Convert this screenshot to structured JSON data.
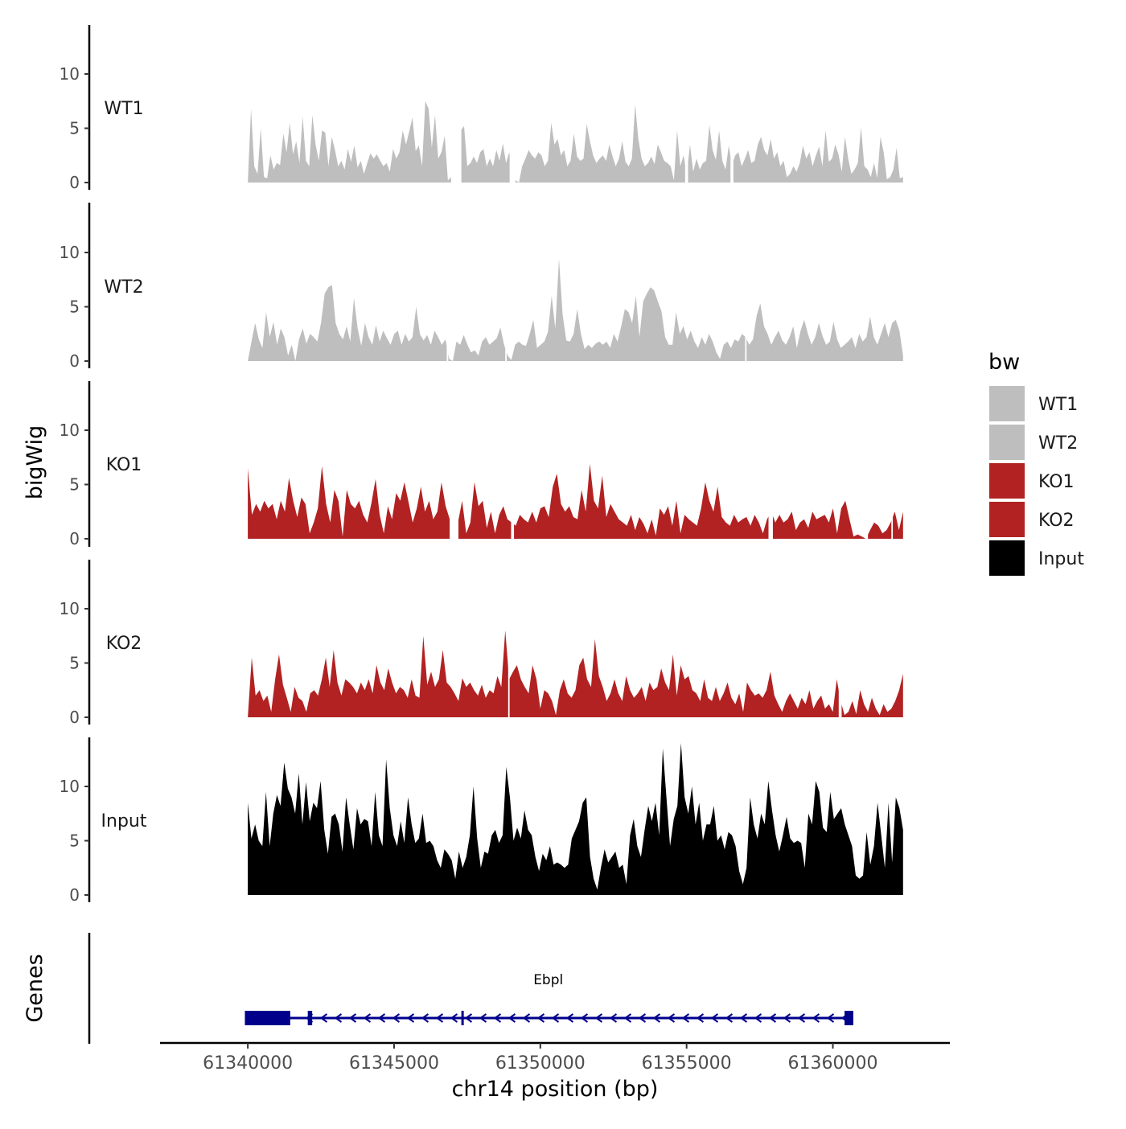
{
  "chart_data": {
    "type": "area",
    "title": "",
    "ylabel_tracks": "bigWig",
    "ylabel_genes": "Genes",
    "xlabel": "chr14 position (bp)",
    "xlim": [
      61337000,
      61364000
    ],
    "ylim": [
      0,
      14
    ],
    "x_ticks": [
      61340000,
      61345000,
      61350000,
      61355000,
      61360000
    ],
    "x_tick_labels": [
      "61340000",
      "61345000",
      "61350000",
      "61355000",
      "61360000"
    ],
    "y_ticks": [
      0,
      5,
      10
    ],
    "y_tick_labels": [
      "0",
      "5",
      "10"
    ],
    "legend": {
      "title": "bw",
      "position": "right",
      "items": [
        {
          "label": "WT1",
          "color": "#bebebe"
        },
        {
          "label": "WT2",
          "color": "#bebebe"
        },
        {
          "label": "KO1",
          "color": "#b22222"
        },
        {
          "label": "KO2",
          "color": "#b22222"
        },
        {
          "label": "Input",
          "color": "#000000"
        }
      ]
    },
    "series": [
      {
        "name": "WT1",
        "color": "#bebebe",
        "x_start": 61340000,
        "x_end": 61362400,
        "gaps": [
          [
            61346950,
            61347300
          ],
          [
            61348950,
            61349150
          ],
          [
            61354950,
            61355050
          ],
          [
            61356500,
            61356600
          ]
        ],
        "values": [
          0,
          6.8,
          1.5,
          0.8,
          5,
          0.5,
          0.4,
          2.5,
          1.2,
          1.8,
          1.6,
          4.5,
          2.8,
          5.5,
          2.6,
          3.8,
          1.8,
          6.1,
          2,
          1.5,
          6.2,
          3.5,
          2,
          4.8,
          4.6,
          1.5,
          4.2,
          3,
          1.5,
          2,
          1.2,
          3.1,
          1.9,
          3.4,
          1.4,
          2,
          0.8,
          1.8,
          2.7,
          2.2,
          2.6,
          2,
          1.5,
          1.8,
          1,
          3.1,
          2.2,
          2.8,
          4.8,
          3.5,
          4.7,
          6,
          2.9,
          3.4,
          1.5,
          7.5,
          6.8,
          3.2,
          6.2,
          2.2,
          2.8,
          4.3,
          0.2,
          0.5,
          0,
          2.2,
          4.8,
          5.2,
          1.5,
          1.8,
          2.4,
          1.8,
          2.8,
          3.1,
          1.5,
          2.2,
          1.5,
          3,
          2,
          3.6,
          1.8,
          2.8,
          0.5,
          0.2,
          0,
          1.5,
          2.2,
          3,
          2.5,
          2.2,
          2.8,
          2.5,
          1.5,
          2,
          5.5,
          3.5,
          4,
          2.5,
          3,
          1.5,
          2,
          4.5,
          2.4,
          2,
          2.2,
          5.4,
          3.8,
          2.5,
          1.8,
          2.2,
          2.5,
          2,
          3.5,
          2.4,
          1.5,
          2.2,
          3.8,
          1.9,
          1.5,
          2.2,
          7.2,
          4,
          2.2,
          1.5,
          1.8,
          2.4,
          1.7,
          3.5,
          2.8,
          2,
          1.8,
          1.5,
          0.2,
          4.8,
          1.5,
          2.5,
          0.8,
          3.5,
          1,
          2.2,
          1.2,
          1.8,
          2,
          5.3,
          3,
          2.1,
          4.8,
          2,
          1.2,
          3.4,
          1.6,
          2.5,
          2.8,
          1.5,
          2.2,
          3,
          1.8,
          2,
          3.5,
          4.2,
          3,
          2.5,
          4,
          2.2,
          2.8,
          1.5,
          2,
          0.5,
          0.8,
          1.5,
          1,
          1.8,
          3.4,
          2.2,
          2.8,
          1.5,
          2.5,
          3.3,
          1.5,
          4.8,
          1.9,
          2.2,
          3.5,
          2.6,
          1,
          4.2,
          2.2,
          0.8,
          1.2,
          1.8,
          5.1,
          1.5,
          1.2,
          0.5,
          1.8,
          0.4,
          4.2,
          2.8,
          0.3,
          0.5,
          1.2,
          3.2,
          0.4,
          0.5
        ],
        "label": "WT1"
      },
      {
        "name": "WT2",
        "color": "#bebebe",
        "x_start": 61340000,
        "x_end": 61362400,
        "gaps": [
          [
            61346800,
            61346850
          ],
          [
            61348800,
            61348850
          ],
          [
            61357000,
            61357050
          ]
        ],
        "values": [
          0,
          1.8,
          3.5,
          2,
          1.2,
          4.5,
          2.2,
          3.6,
          1.5,
          3,
          2.2,
          0.5,
          1.5,
          0,
          2,
          3,
          1.6,
          2.5,
          2.2,
          1.8,
          3.5,
          6.2,
          6.8,
          7,
          3.5,
          2.5,
          2,
          3.2,
          1.8,
          5.8,
          3,
          1.4,
          3.5,
          2.2,
          1.5,
          3.3,
          1.8,
          2.8,
          2.1,
          1.5,
          2.5,
          2.8,
          1.5,
          2.5,
          1.8,
          2.2,
          5,
          2.5,
          1.9,
          2.4,
          1.5,
          2.8,
          2.2,
          1.5,
          2,
          0.2,
          0,
          1.8,
          1.5,
          2.4,
          1.5,
          0.8,
          1,
          0.5,
          1.8,
          2.2,
          1.5,
          1.8,
          2.1,
          3.1,
          1.5,
          0.5,
          0.1,
          1.5,
          1.8,
          1.5,
          1.4,
          2.5,
          3.8,
          1.2,
          1.5,
          1.8,
          2.7,
          6,
          3,
          9.4,
          4.3,
          1.9,
          1.8,
          2.5,
          4.8,
          2.5,
          1.1,
          1.5,
          1.2,
          1.6,
          1.8,
          1.5,
          1.8,
          1.2,
          2.5,
          1.8,
          3.2,
          4.8,
          4.5,
          3.5,
          6,
          2.2,
          5.5,
          6.2,
          6.8,
          6.5,
          5.5,
          4.6,
          2.2,
          1.5,
          1.5,
          4.5,
          2.5,
          3.2,
          2,
          2.8,
          1.8,
          1.2,
          2.2,
          1.5,
          2.5,
          1.8,
          0.8,
          0.2,
          1.5,
          1.8,
          1.2,
          2,
          1.8,
          2.5,
          2.2,
          1.5,
          2,
          4.2,
          5.3,
          3.2,
          2.5,
          1.5,
          2.2,
          2.8,
          1.9,
          1.5,
          2.2,
          3.2,
          1.2,
          2.8,
          3.8,
          2.5,
          1.5,
          2.2,
          3.5,
          2.3,
          1.5,
          1.8,
          3.6,
          2,
          1.2,
          1.5,
          1.8,
          2.2,
          1.2,
          2.5,
          1.8,
          2.2,
          4.1,
          2.2,
          1.5,
          2.5,
          3.5,
          2.2,
          3.5,
          3.8,
          2.8,
          0.5
        ]
      },
      {
        "name": "KO1",
        "color": "#b22222",
        "x_start": 61340000,
        "x_end": 61362400,
        "gaps": [
          [
            61346900,
            61347200
          ],
          [
            61349000,
            61349100
          ],
          [
            61357800,
            61357950
          ],
          [
            61361100,
            61361200
          ],
          [
            61362000,
            61362050
          ]
        ],
        "values": [
          6.5,
          2.2,
          3.2,
          2.5,
          3.5,
          2.8,
          3.2,
          1.8,
          3.5,
          2.5,
          5.6,
          3.5,
          2,
          3.8,
          3.2,
          0.5,
          1.5,
          2.8,
          6.7,
          3.2,
          1.5,
          4.5,
          3.5,
          0.2,
          4.5,
          3.2,
          2.8,
          3.5,
          2.2,
          1.5,
          3.3,
          5.5,
          2.2,
          0.5,
          3,
          1.8,
          4.2,
          3.5,
          5.2,
          3.4,
          1.5,
          2.8,
          4.8,
          2.5,
          3.5,
          1.8,
          2.5,
          5.2,
          3,
          1.8,
          2,
          1.5,
          3.5,
          0.5,
          1.5,
          5.2,
          3,
          3.5,
          1,
          2.5,
          0.5,
          2.2,
          3,
          1.8,
          1.5,
          1.2,
          2.2,
          1.8,
          1.5,
          2.5,
          1.5,
          2.8,
          3,
          2,
          4.8,
          6,
          3.2,
          2.5,
          3,
          2,
          1.8,
          4.5,
          2.5,
          6.9,
          3.5,
          2.8,
          5.8,
          2,
          3.2,
          2.5,
          1.8,
          1.5,
          1.2,
          2.2,
          0.8,
          2,
          1.4,
          0.5,
          1.8,
          0.3,
          2.8,
          2.2,
          3,
          1.2,
          3.5,
          0.5,
          2.2,
          1.8,
          1.5,
          1.2,
          2.8,
          5.2,
          3.5,
          2.5,
          4.8,
          2,
          1.5,
          1.2,
          2.2,
          1.5,
          1.8,
          2,
          1.2,
          2.2,
          1.5,
          0.5,
          1.8,
          2.5,
          1.5,
          2.2,
          1.5,
          1.8,
          2.5,
          0.8,
          1.5,
          1.8,
          1,
          2.5,
          1.8,
          2,
          2.2,
          1.5,
          2.8,
          0.5,
          2.8,
          3.5,
          1.8,
          0.2,
          0.4,
          0.2,
          0,
          0.8,
          1.5,
          1.2,
          0.5,
          0.8,
          1.5,
          2.5,
          0.8,
          2.5
        ]
      },
      {
        "name": "KO2",
        "color": "#b22222",
        "x_start": 61340000,
        "x_end": 61362400,
        "gaps": [
          [
            61348900,
            61348950
          ],
          [
            61360200,
            61360300
          ]
        ],
        "values": [
          0,
          5.5,
          2,
          2.5,
          1.5,
          2,
          0.5,
          3.5,
          5.8,
          3,
          1.8,
          0.5,
          2.8,
          1.8,
          1.5,
          0.5,
          2.2,
          2.5,
          2,
          3.5,
          5.5,
          2.8,
          6.2,
          3.2,
          2,
          3.5,
          3.2,
          2.8,
          2.2,
          3.2,
          2.5,
          3.5,
          2.2,
          4.8,
          3.2,
          2.5,
          4.5,
          3.2,
          2.2,
          2.8,
          2.5,
          1.8,
          3.5,
          2,
          1.8,
          7.5,
          3,
          4.2,
          2.8,
          3.5,
          6.2,
          3.2,
          2.8,
          2.2,
          1.5,
          3.6,
          2.8,
          3.2,
          2.5,
          2,
          3,
          1.8,
          2.5,
          2.2,
          3.8,
          2.8,
          8,
          3.5,
          4.2,
          4.8,
          3.5,
          2.8,
          2.2,
          4.8,
          3.5,
          0.8,
          2.5,
          2.2,
          1.5,
          0.2,
          2.5,
          3.5,
          2.2,
          1.8,
          2.5,
          4.8,
          5.5,
          3.5,
          2.8,
          7.2,
          3.8,
          2.8,
          1.5,
          2.2,
          3.5,
          2.2,
          1.5,
          3.8,
          2.5,
          1.8,
          2.2,
          2.8,
          1.5,
          3.2,
          2.5,
          2.8,
          4.5,
          3.2,
          2.5,
          5.8,
          2,
          4.8,
          3.5,
          3.8,
          2.5,
          2.2,
          1.5,
          3.5,
          1.8,
          1.5,
          2.8,
          1.5,
          2.2,
          3.2,
          1.8,
          1.2,
          2.2,
          0.5,
          3.2,
          2.5,
          2,
          2.2,
          1.8,
          2.5,
          4.2,
          2,
          1.2,
          0.5,
          1.5,
          2.2,
          1.5,
          0.8,
          1.8,
          1.2,
          2.5,
          0.8,
          1.5,
          2,
          0.8,
          1.2,
          0.5,
          3.5,
          1.5,
          0.2,
          0.5,
          1.5,
          0.3,
          2.5,
          1.2,
          0.5,
          1.8,
          0.8,
          0.2,
          1.2,
          0.5,
          0.8,
          1.5,
          2.5,
          4
        ]
      },
      {
        "name": "Input",
        "color": "#000000",
        "x_start": 61340000,
        "x_end": 61362400,
        "gaps": [],
        "values": [
          8.5,
          5.2,
          6.5,
          5,
          4.5,
          9.5,
          4.5,
          7.5,
          9.2,
          8.2,
          12.2,
          9.8,
          9,
          7.5,
          11.2,
          6.5,
          10.4,
          6.8,
          8.5,
          8,
          10.5,
          6,
          3.8,
          7.2,
          7.5,
          6.5,
          4,
          9,
          6.5,
          4.2,
          8,
          6.5,
          7,
          6.8,
          4.5,
          9.5,
          5.5,
          4.5,
          12.5,
          8,
          5.5,
          4.5,
          6.8,
          4.8,
          9,
          6.5,
          4.8,
          5.2,
          7.5,
          4.8,
          5,
          4.5,
          3.2,
          2.5,
          4.2,
          3.8,
          3.2,
          1.5,
          4,
          2.5,
          3.5,
          5.5,
          10,
          5.2,
          2.5,
          4,
          3.8,
          5.5,
          6,
          4.8,
          5.5,
          11.8,
          9,
          5,
          6.2,
          5.2,
          7.8,
          6,
          5.5,
          3.5,
          2.2,
          3.8,
          3.2,
          4.5,
          2.8,
          3,
          2.8,
          2.5,
          2.8,
          5.2,
          6,
          6.8,
          8.5,
          9,
          3.5,
          1.5,
          0.5,
          2.5,
          4.2,
          3,
          3.5,
          4,
          2.5,
          2.8,
          1,
          5.5,
          7,
          4.5,
          3.5,
          6,
          8.2,
          6.8,
          8.5,
          5.5,
          13.5,
          9,
          4.5,
          7,
          8.2,
          14,
          9,
          7.5,
          10,
          6.5,
          8.5,
          5,
          6.5,
          6.5,
          8.2,
          5,
          5.5,
          4.2,
          5.8,
          5.5,
          4.5,
          2.2,
          1,
          2.5,
          9,
          6.5,
          5.2,
          7.5,
          6.5,
          10.5,
          7.8,
          5.5,
          4,
          5.5,
          7.2,
          5.2,
          4.8,
          5,
          4.8,
          2.5,
          7.5,
          6.5,
          10.5,
          9.5,
          6.2,
          5.8,
          9.5,
          7,
          7.5,
          8,
          6.5,
          5.5,
          4.5,
          1.8,
          1.5,
          1.8,
          5.8,
          2.8,
          4.5,
          8.5,
          5.5,
          2.5,
          8.5,
          3,
          9,
          8,
          6
        ]
      }
    ],
    "gene_track": {
      "label": "Ebpl",
      "color": "#00008b",
      "strand": "-",
      "tx_start": 61339900,
      "tx_end": 61360700,
      "exons": [
        [
          61339900,
          61341450
        ],
        [
          61342050,
          61342200
        ],
        [
          61347300,
          61347360
        ],
        [
          61360400,
          61360700
        ]
      ]
    }
  }
}
